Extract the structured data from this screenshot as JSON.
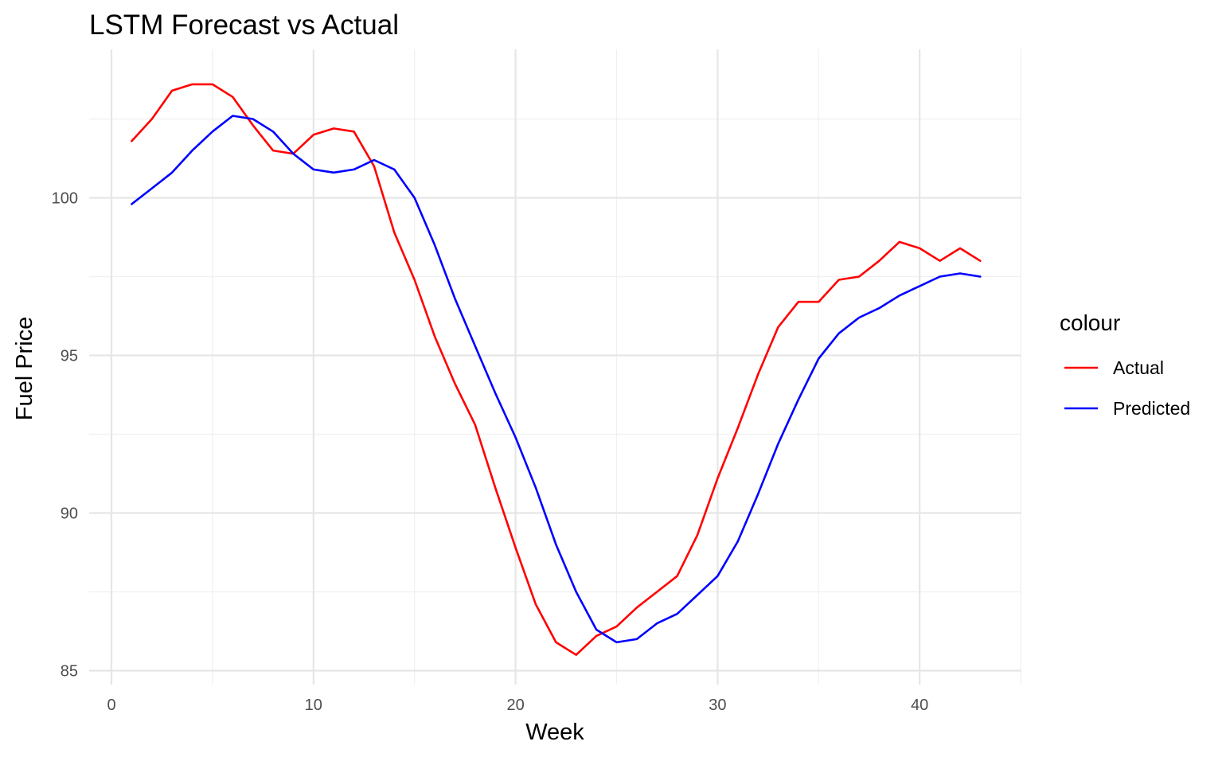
{
  "chart_data": {
    "type": "line",
    "title": "LSTM Forecast vs Actual",
    "xlabel": "Week",
    "ylabel": "Fuel Price",
    "xlim": [
      0,
      45
    ],
    "ylim": [
      85,
      104.5
    ],
    "x_ticks": [
      0,
      10,
      20,
      30,
      40
    ],
    "y_ticks": [
      85,
      90,
      95,
      100
    ],
    "grid": true,
    "legend": {
      "title": "colour",
      "position": "right"
    },
    "x": [
      1,
      2,
      3,
      4,
      5,
      6,
      7,
      8,
      9,
      10,
      11,
      12,
      13,
      14,
      15,
      16,
      17,
      18,
      19,
      20,
      21,
      22,
      23,
      24,
      25,
      26,
      27,
      28,
      29,
      30,
      31,
      32,
      33,
      34,
      35,
      36,
      37,
      38,
      39,
      40,
      41,
      42,
      43
    ],
    "series": [
      {
        "name": "Actual",
        "color": "#ff0000",
        "values": [
          101.8,
          102.5,
          103.4,
          103.6,
          103.6,
          103.2,
          102.3,
          101.5,
          101.4,
          102.0,
          102.2,
          102.1,
          101.0,
          98.9,
          97.4,
          95.6,
          94.1,
          92.8,
          90.8,
          88.9,
          87.1,
          85.9,
          85.5,
          86.1,
          86.4,
          87.0,
          87.5,
          88.0,
          89.3,
          91.1,
          92.7,
          94.4,
          95.9,
          96.7,
          96.7,
          97.4,
          97.5,
          98.0,
          98.6,
          98.4,
          98.0,
          98.4,
          98.0
        ]
      },
      {
        "name": "Predicted",
        "color": "#0000ff",
        "values": [
          99.8,
          100.3,
          100.8,
          101.5,
          102.1,
          102.6,
          102.5,
          102.1,
          101.4,
          100.9,
          100.8,
          100.9,
          101.2,
          100.9,
          100.0,
          98.5,
          96.8,
          95.3,
          93.8,
          92.4,
          90.8,
          89.0,
          87.5,
          86.3,
          85.9,
          86.0,
          86.5,
          86.8,
          87.4,
          88.0,
          89.1,
          90.6,
          92.2,
          93.6,
          94.9,
          95.7,
          96.2,
          96.5,
          96.9,
          97.2,
          97.5,
          97.6,
          97.5
        ]
      }
    ]
  }
}
